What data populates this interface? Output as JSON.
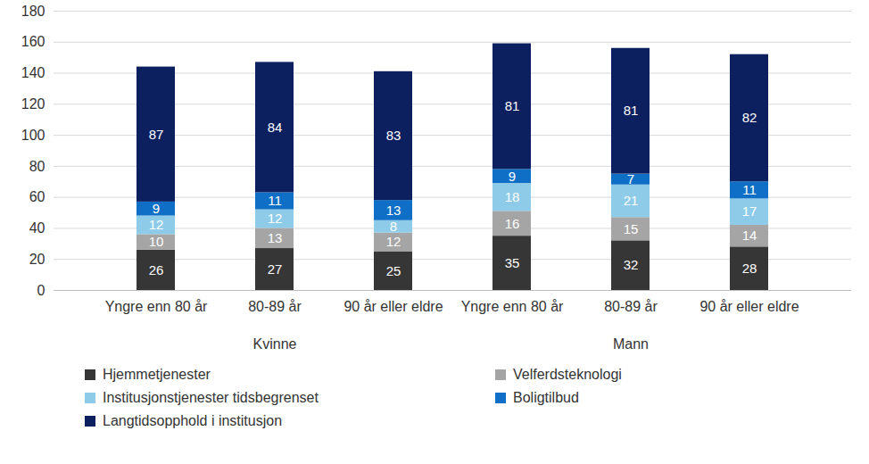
{
  "chart_data": {
    "type": "bar",
    "stacked": true,
    "data_labels": true,
    "grid": true,
    "categories": [
      "Yngre enn 80 år",
      "80-89 år",
      "90 år eller eldre",
      "Yngre enn 80 år",
      "80-89 år",
      "90 år eller eldre"
    ],
    "groups": [
      "Kvinne",
      "Kvinne",
      "Kvinne",
      "Mann",
      "Mann",
      "Mann"
    ],
    "series": [
      {
        "name": "Hjemmetjenester",
        "color": "#363636",
        "values": [
          26,
          27,
          25,
          35,
          32,
          28
        ]
      },
      {
        "name": "Velferdsteknologi",
        "color": "#a5a5a5",
        "values": [
          10,
          13,
          12,
          16,
          15,
          14
        ]
      },
      {
        "name": "Institusjonstjenester tidsbegrenset",
        "color": "#8ecbe8",
        "values": [
          12,
          12,
          8,
          18,
          21,
          17
        ]
      },
      {
        "name": "Boligtilbud",
        "color": "#0f6fc6",
        "values": [
          9,
          11,
          13,
          9,
          7,
          11
        ]
      },
      {
        "name": "Langtidsopphold i institusjon",
        "color": "#0c1f5e",
        "values": [
          87,
          84,
          83,
          81,
          81,
          82
        ]
      }
    ],
    "ylim": [
      0,
      180
    ],
    "yticks": [
      0,
      20,
      40,
      60,
      80,
      100,
      120,
      140,
      160,
      180
    ]
  }
}
